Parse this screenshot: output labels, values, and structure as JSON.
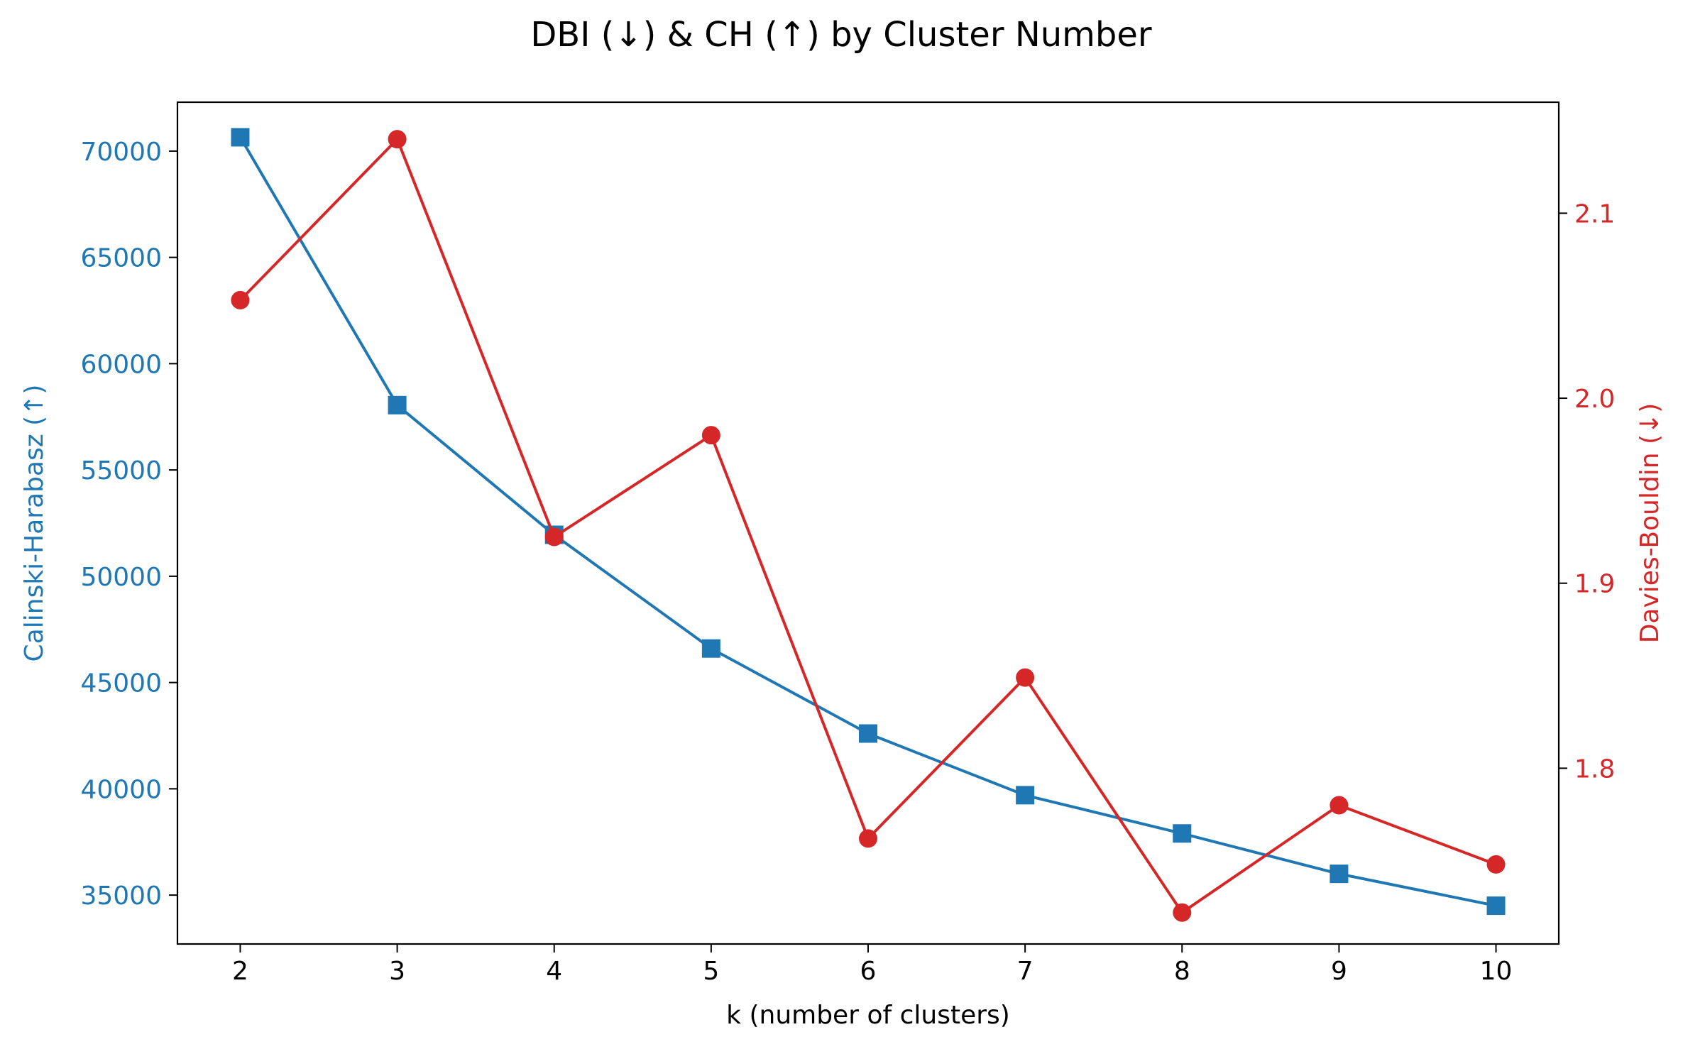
{
  "chart_data": {
    "type": "line",
    "title": "DBI (↓) & CH (↑) by Cluster Number",
    "xlabel": "k (number of clusters)",
    "x": [
      2,
      3,
      4,
      5,
      6,
      7,
      8,
      9,
      10
    ],
    "xticks": [
      "2",
      "3",
      "4",
      "5",
      "6",
      "7",
      "8",
      "9",
      "10"
    ],
    "left_axis": {
      "label": "Calinski-Harabasz (↑)",
      "color": "#1f77b4",
      "ylim": [
        32700,
        72300
      ],
      "ticks": [
        35000,
        40000,
        45000,
        50000,
        55000,
        60000,
        65000,
        70000
      ],
      "tick_labels": [
        "35000",
        "40000",
        "45000",
        "50000",
        "55000",
        "60000",
        "65000",
        "70000"
      ]
    },
    "right_axis": {
      "label": "Davies-Bouldin (↓)",
      "color": "#d62728",
      "ylim": [
        1.705,
        2.16
      ],
      "ticks": [
        1.8,
        1.9,
        2.0,
        2.1
      ],
      "tick_labels": [
        "1.8",
        "1.9",
        "2.0",
        "2.1"
      ]
    },
    "series": [
      {
        "axis": "left",
        "marker": "square",
        "color": "#1f77b4",
        "values": [
          70650,
          58050,
          51950,
          46600,
          42600,
          39700,
          37900,
          36000,
          34500
        ]
      },
      {
        "axis": "right",
        "marker": "circle",
        "color": "#d62728",
        "values": [
          2.053,
          2.14,
          1.925,
          1.98,
          1.762,
          1.849,
          1.722,
          1.78,
          1.748
        ]
      }
    ],
    "grid": false,
    "legend": "none"
  }
}
